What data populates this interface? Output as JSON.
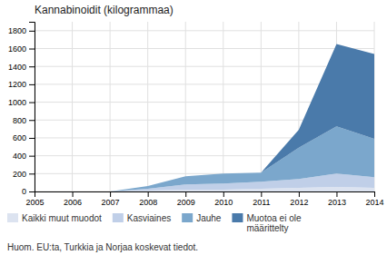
{
  "chart_data": {
    "type": "area",
    "title": "Kannabinoidit (kilogrammaa)",
    "footnote": "Huom. EU:ta, Turkkia ja Norjaa koskevat tiedot.",
    "stacked": true,
    "x": [
      2005,
      2006,
      2007,
      2008,
      2009,
      2010,
      2011,
      2012,
      2013,
      2014
    ],
    "series": [
      {
        "name": "Kaikki muut muodot",
        "color": "#dce3f0",
        "values": [
          0,
          0,
          0,
          10,
          20,
          20,
          30,
          40,
          50,
          40
        ]
      },
      {
        "name": "Kasviaines",
        "color": "#c0cfe8",
        "values": [
          0,
          0,
          0,
          20,
          60,
          70,
          80,
          100,
          150,
          120
        ]
      },
      {
        "name": "Jauhe",
        "color": "#7ba7cc",
        "values": [
          0,
          0,
          0,
          30,
          90,
          110,
          100,
          350,
          530,
          430
        ]
      },
      {
        "name": "Muotoa ei ole\nmäärittelty",
        "color": "#4a7aaa",
        "values": [
          0,
          0,
          0,
          0,
          0,
          0,
          0,
          200,
          920,
          950
        ]
      }
    ],
    "xlim": [
      2005,
      2014
    ],
    "xticks": [
      2005,
      2006,
      2007,
      2008,
      2009,
      2010,
      2011,
      2012,
      2013,
      2014
    ],
    "ylim": [
      0,
      1900
    ],
    "yticks": [
      0,
      200,
      400,
      600,
      800,
      1000,
      1200,
      1400,
      1600,
      1800
    ],
    "grid": true,
    "legend": "bottom"
  }
}
